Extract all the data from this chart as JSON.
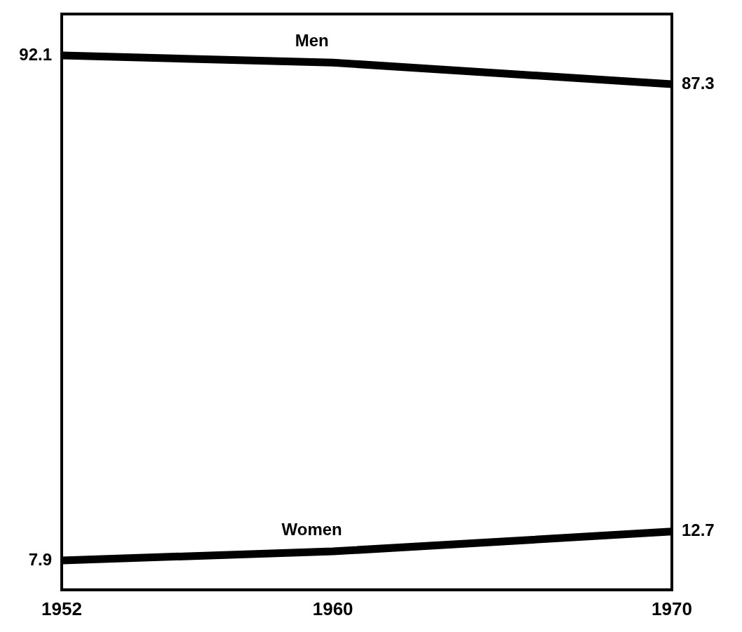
{
  "chart_data": {
    "type": "line",
    "x": [
      1952,
      1960,
      1970
    ],
    "xlim": [
      1952,
      1970
    ],
    "xticks": [
      1952,
      1960,
      1970
    ],
    "ylim": [
      3,
      99
    ],
    "series": [
      {
        "name": "Men",
        "color": "#000000",
        "values": [
          92.1,
          90.9,
          87.3
        ],
        "value_labels": [
          "92.1",
          null,
          "87.3"
        ]
      },
      {
        "name": "Women",
        "color": "#000000",
        "values": [
          7.9,
          9.4,
          12.7
        ],
        "value_labels": [
          "7.9",
          null,
          "12.7"
        ]
      }
    ],
    "grid": false,
    "legend": false,
    "marker": "none",
    "line_style": "solid",
    "tick_labels": "x"
  }
}
